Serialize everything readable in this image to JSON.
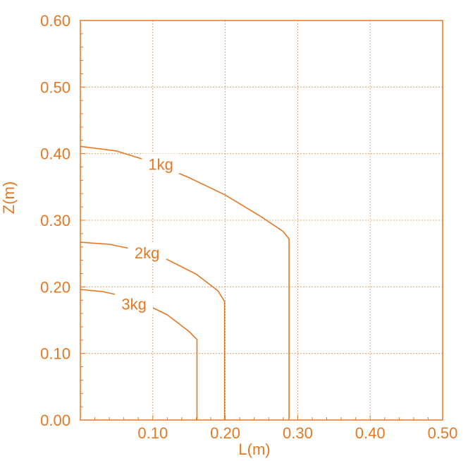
{
  "chart_data": {
    "type": "line",
    "xlabel": "L(m)",
    "ylabel": "Z(m)",
    "xlim": [
      0,
      0.5
    ],
    "ylim": [
      0,
      0.6
    ],
    "x_ticks": [
      {
        "value": 0.1,
        "label": "0.10"
      },
      {
        "value": 0.2,
        "label": "0.20"
      },
      {
        "value": 0.3,
        "label": "0.30"
      },
      {
        "value": 0.4,
        "label": "0.40"
      },
      {
        "value": 0.5,
        "label": "0.50"
      }
    ],
    "y_ticks": [
      {
        "value": 0.0,
        "label": "0.00"
      },
      {
        "value": 0.1,
        "label": "0.10"
      },
      {
        "value": 0.2,
        "label": "0.20"
      },
      {
        "value": 0.3,
        "label": "0.30"
      },
      {
        "value": 0.4,
        "label": "0.40"
      },
      {
        "value": 0.5,
        "label": "0.50"
      },
      {
        "value": 0.6,
        "label": "0.60"
      }
    ],
    "grid": true,
    "color": "#e87722",
    "series": [
      {
        "name": "1kg",
        "label_at": [
          0.111,
          0.382
        ],
        "points": [
          [
            0,
            0.411
          ],
          [
            0.05,
            0.404
          ],
          [
            0.1,
            0.387
          ],
          [
            0.15,
            0.364
          ],
          [
            0.2,
            0.338
          ],
          [
            0.25,
            0.305
          ],
          [
            0.28,
            0.283
          ],
          [
            0.288,
            0.272
          ],
          [
            0.288,
            0
          ]
        ]
      },
      {
        "name": "2kg",
        "label_at": [
          0.092,
          0.249
        ],
        "points": [
          [
            0,
            0.267
          ],
          [
            0.04,
            0.264
          ],
          [
            0.08,
            0.255
          ],
          [
            0.12,
            0.241
          ],
          [
            0.16,
            0.219
          ],
          [
            0.19,
            0.194
          ],
          [
            0.199,
            0.178
          ],
          [
            0.199,
            0
          ]
        ]
      },
      {
        "name": "3kg",
        "label_at": [
          0.074,
          0.172
        ],
        "points": [
          [
            0,
            0.196
          ],
          [
            0.03,
            0.193
          ],
          [
            0.06,
            0.186
          ],
          [
            0.09,
            0.174
          ],
          [
            0.12,
            0.158
          ],
          [
            0.15,
            0.133
          ],
          [
            0.161,
            0.121
          ],
          [
            0.161,
            0
          ]
        ]
      }
    ]
  }
}
